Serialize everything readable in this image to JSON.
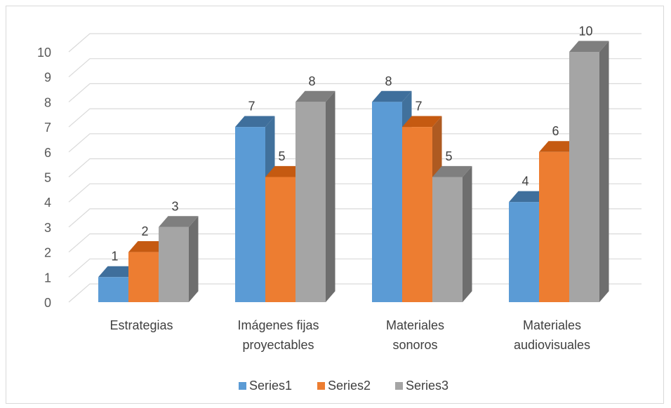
{
  "chart_data": {
    "type": "bar",
    "style": "3d-clustered-column",
    "categories": [
      [
        "Estrategias"
      ],
      [
        "Imágenes fijas",
        "proyectables"
      ],
      [
        "Materiales",
        "sonoros"
      ],
      [
        "Materiales",
        "audiovisuales"
      ]
    ],
    "series": [
      {
        "name": "Series1",
        "color": "#5b9bd5",
        "side_color": "#41719c",
        "top_color": "#3f6f9c",
        "values": [
          1,
          7,
          8,
          4
        ]
      },
      {
        "name": "Series2",
        "color": "#ed7d31",
        "side_color": "#ae5a21",
        "top_color": "#c55a11",
        "values": [
          2,
          5,
          7,
          6
        ]
      },
      {
        "name": "Series3",
        "color": "#a5a5a5",
        "side_color": "#6e6e6e",
        "top_color": "#7f7f7f",
        "values": [
          3,
          8,
          5,
          10
        ]
      }
    ],
    "ylim": [
      0,
      10
    ],
    "yticks": [
      0,
      1,
      2,
      3,
      4,
      5,
      6,
      7,
      8,
      9,
      10
    ],
    "grid": true,
    "data_labels": true,
    "legend": "bottom",
    "gridline_color": "#d9d9d9"
  }
}
